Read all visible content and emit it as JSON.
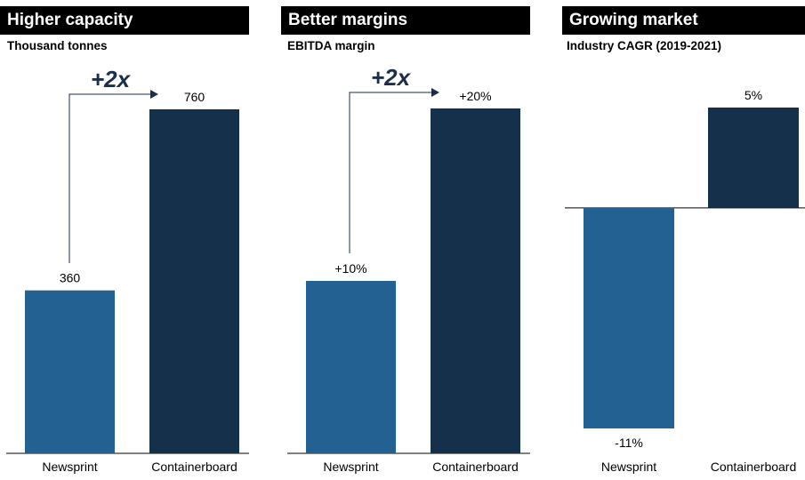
{
  "colors": {
    "newsprint": "#236192",
    "containerboard": "#14304a",
    "arrow": "#1b2e4a"
  },
  "chart_data": [
    {
      "type": "bar",
      "title": "Higher capacity",
      "subtitle": "Thousand tonnes",
      "categories": [
        "Newsprint",
        "Containerboard"
      ],
      "values": [
        360,
        760
      ],
      "value_labels": [
        "360",
        "760"
      ],
      "ylim": [
        0,
        760
      ],
      "annotation": "+2x"
    },
    {
      "type": "bar",
      "title": "Better margins",
      "subtitle": "EBITDA margin",
      "categories": [
        "Newsprint",
        "Containerboard"
      ],
      "values": [
        10,
        20
      ],
      "value_labels": [
        "+10%",
        "+20%"
      ],
      "ylim": [
        0,
        20
      ],
      "annotation": "+2x"
    },
    {
      "type": "bar",
      "title": "Growing market",
      "subtitle": "Industry CAGR (2019-2021)",
      "categories": [
        "Newsprint",
        "Containerboard"
      ],
      "values": [
        -11,
        5
      ],
      "value_labels": [
        "-11%",
        "5%"
      ],
      "ylim": [
        -11,
        5
      ],
      "annotation": ""
    }
  ]
}
